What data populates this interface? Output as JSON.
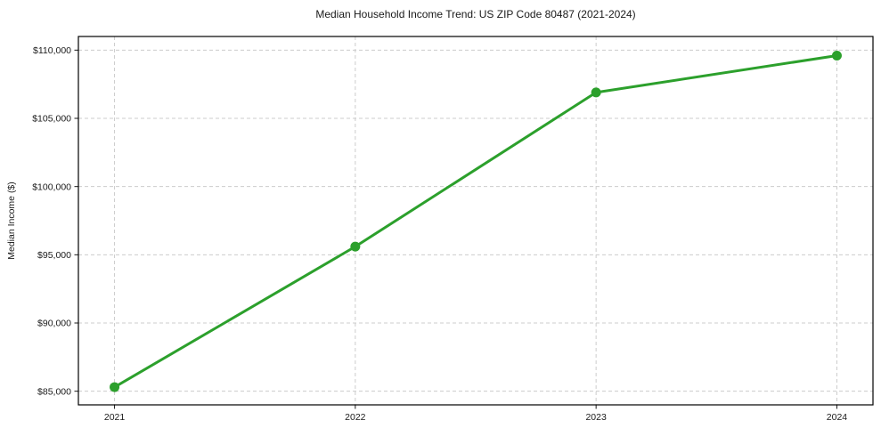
{
  "chart_data": {
    "type": "line",
    "title": "Median Household Income Trend: US ZIP Code 80487 (2021-2024)",
    "xlabel": "",
    "ylabel": "Median Income ($)",
    "x": [
      2021,
      2022,
      2023,
      2024
    ],
    "x_tick_labels": [
      "2021",
      "2022",
      "2023",
      "2024"
    ],
    "series": [
      {
        "name": "Median household income",
        "values": [
          85300,
          95600,
          106900,
          109600
        ],
        "color": "#2ca02c"
      }
    ],
    "y_ticks": [
      85000,
      90000,
      95000,
      100000,
      105000,
      110000
    ],
    "y_tick_labels": [
      "$85,000",
      "$90,000",
      "$95,000",
      "$100,000",
      "$105,000",
      "$110,000"
    ],
    "xlim": [
      2020.85,
      2024.15
    ],
    "ylim": [
      84000,
      111000
    ],
    "grid": true,
    "grid_style": "dashed",
    "legend": "none",
    "marker": "circle",
    "colors": {
      "line": "#2ca02c",
      "marker": "#2ca02c",
      "grid": "#cccccc",
      "axis": "#000000",
      "text": "#1a1a1a",
      "background": "#ffffff"
    }
  }
}
